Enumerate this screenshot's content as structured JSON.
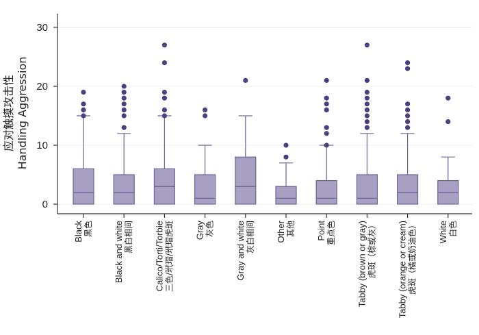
{
  "chart_data": {
    "type": "box",
    "ylabel_cn": "应对触摸攻击性",
    "ylabel_en": "Handling Aggression",
    "ylim": [
      0,
      30
    ],
    "yticks": [
      0,
      10,
      20,
      30
    ],
    "grid": true,
    "colors": {
      "box_fill": "#a7a0c2",
      "box_stroke": "#6e6496",
      "outlier": "#4e3f80",
      "grid": "#ececec",
      "axis": "#333333"
    },
    "categories": [
      {
        "label_en": "Black",
        "label_cn": "黑色",
        "whisker_low": 0,
        "q1": 0,
        "median": 2,
        "q3": 6,
        "whisker_high": 15,
        "outliers": [
          15,
          16,
          17,
          19
        ]
      },
      {
        "label_en": "Black and white",
        "label_cn": "黑白相间",
        "whisker_low": 0,
        "q1": 0,
        "median": 2,
        "q3": 5,
        "whisker_high": 12,
        "outliers": [
          13,
          15,
          16,
          17,
          18,
          19,
          20
        ]
      },
      {
        "label_en": "Calico/Torti/Torbie",
        "label_cn": "三色/玳瑁/玳瑁虎斑",
        "whisker_low": 0,
        "q1": 0,
        "median": 3,
        "q3": 6,
        "whisker_high": 15,
        "outliers": [
          15,
          16,
          18,
          19,
          24,
          27
        ]
      },
      {
        "label_en": "Gray",
        "label_cn": "灰色",
        "whisker_low": 0,
        "q1": 0,
        "median": 1,
        "q3": 5,
        "whisker_high": 10,
        "outliers": [
          15,
          16
        ]
      },
      {
        "label_en": "Gray and white",
        "label_cn": "灰白相间",
        "whisker_low": 0,
        "q1": 0,
        "median": 3,
        "q3": 8,
        "whisker_high": 15,
        "outliers": [
          21
        ]
      },
      {
        "label_en": "Other",
        "label_cn": "其他",
        "whisker_low": 0,
        "q1": 0,
        "median": 1,
        "q3": 3,
        "whisker_high": 7,
        "outliers": [
          8,
          10
        ]
      },
      {
        "label_en": "Point",
        "label_cn": "重点色",
        "whisker_low": 0,
        "q1": 0,
        "median": 1,
        "q3": 4,
        "whisker_high": 10,
        "outliers": [
          10,
          12,
          13,
          16,
          17,
          18,
          21
        ]
      },
      {
        "label_en": "Tabby (brown or gray)",
        "label_cn": "虎斑（棕或灰）",
        "whisker_low": 0,
        "q1": 0,
        "median": 1,
        "q3": 5,
        "whisker_high": 12,
        "outliers": [
          13,
          14,
          15,
          16,
          17,
          18,
          19,
          21,
          27
        ]
      },
      {
        "label_en": "Tabby (orange or cream)",
        "label_cn": "虎斑（橘或奶油色）",
        "whisker_low": 0,
        "q1": 0,
        "median": 2,
        "q3": 5,
        "whisker_high": 12,
        "outliers": [
          13,
          14,
          15,
          16,
          17,
          23,
          24
        ]
      },
      {
        "label_en": "White",
        "label_cn": "白色",
        "whisker_low": 0,
        "q1": 0,
        "median": 2,
        "q3": 4,
        "whisker_high": 8,
        "outliers": [
          14,
          18
        ]
      }
    ]
  }
}
